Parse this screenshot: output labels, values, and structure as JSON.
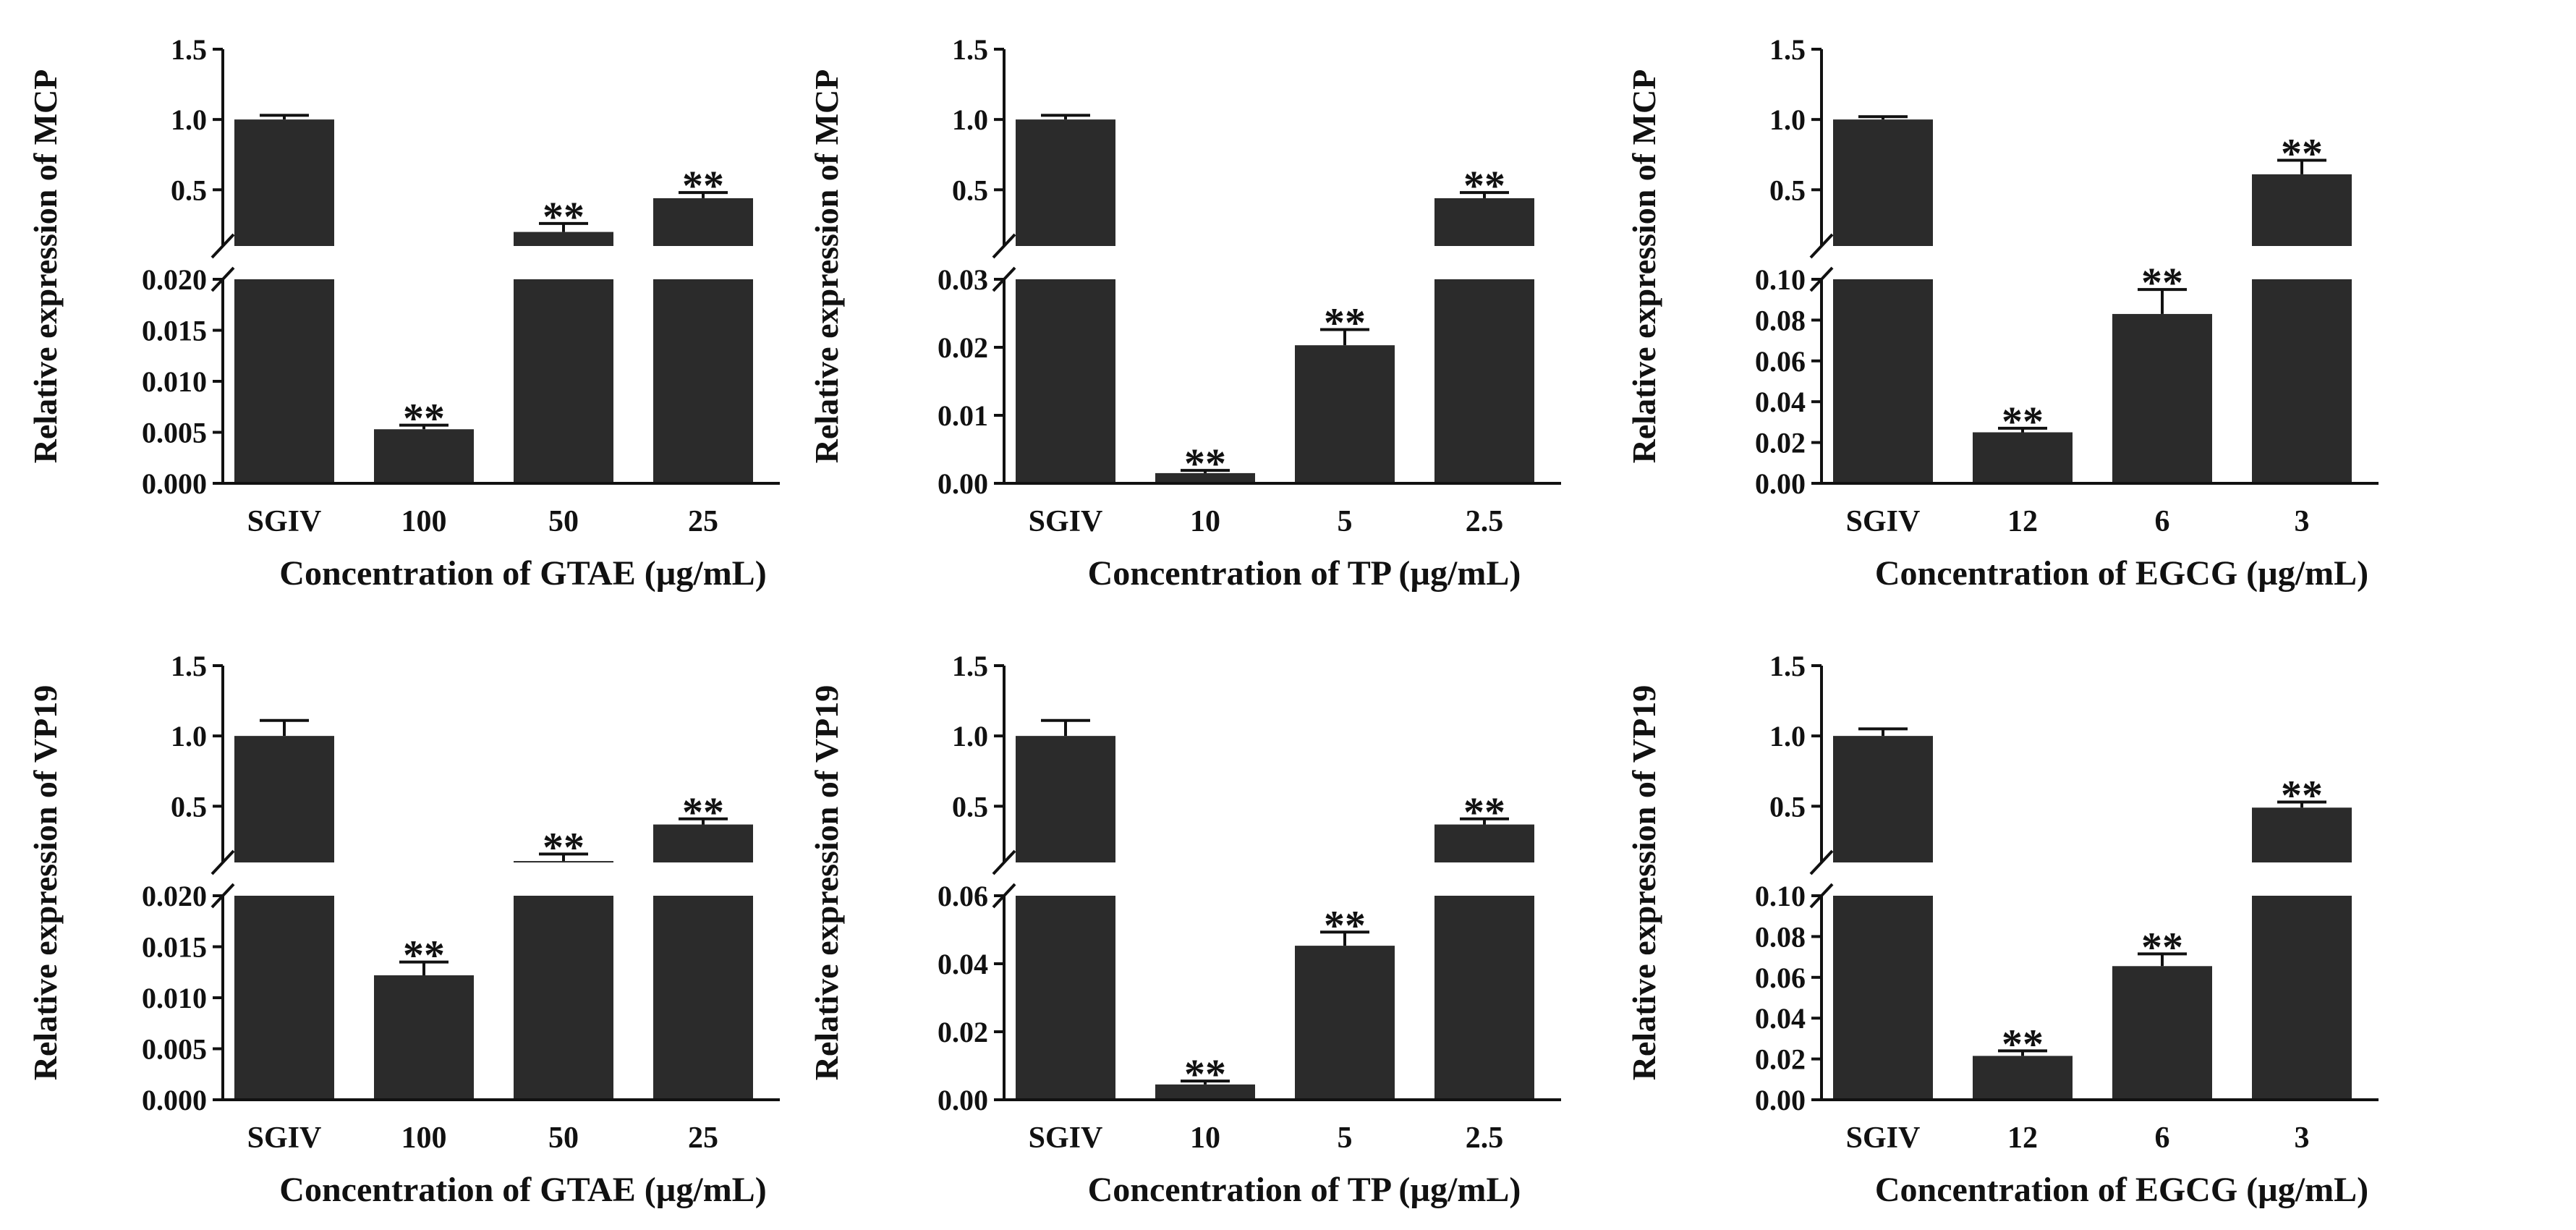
{
  "style": {
    "bar_color": "#2b2b2b",
    "axis_color": "#111111"
  },
  "chart_data": [
    {
      "type": "bar",
      "ylabel": "Relative expression of MCP",
      "xlabel": "Concentration of  GTAE (µg/mL)",
      "categories": [
        "SGIV",
        "100",
        "50",
        "25"
      ],
      "values": [
        1.0,
        0.0053,
        0.2,
        0.44
      ],
      "errors": [
        0.03,
        0.0004,
        0.06,
        0.04
      ],
      "significance": [
        "",
        "**",
        "**",
        "**"
      ],
      "upper": {
        "ylim": [
          0.1,
          1.5
        ],
        "ticks": [
          "0.5",
          "1.0",
          "1.5"
        ]
      },
      "lower": {
        "ylim": [
          0,
          0.02
        ],
        "ticks": [
          "0.000",
          "0.005",
          "0.010",
          "0.015",
          "0.020"
        ]
      }
    },
    {
      "type": "bar",
      "ylabel": "Relative expression of MCP",
      "xlabel": "Concentration of  TP (µg/mL)",
      "categories": [
        "SGIV",
        "10",
        "5",
        "2.5"
      ],
      "values": [
        1.0,
        0.0015,
        0.0203,
        0.44
      ],
      "errors": [
        0.03,
        0.0004,
        0.0023,
        0.04
      ],
      "significance": [
        "",
        "**",
        "**",
        "**"
      ],
      "upper": {
        "ylim": [
          0.1,
          1.5
        ],
        "ticks": [
          "0.5",
          "1.0",
          "1.5"
        ]
      },
      "lower": {
        "ylim": [
          0,
          0.03
        ],
        "ticks": [
          "0.00",
          "0.01",
          "0.02",
          "0.03"
        ]
      }
    },
    {
      "type": "bar",
      "ylabel": "Relative expression of MCP",
      "xlabel": "Concentration of  EGCG (µg/mL)",
      "categories": [
        "SGIV",
        "12",
        "6",
        "3"
      ],
      "values": [
        1.0,
        0.025,
        0.083,
        0.61
      ],
      "errors": [
        0.02,
        0.002,
        0.012,
        0.1
      ],
      "significance": [
        "",
        "**",
        "**",
        "**"
      ],
      "upper": {
        "ylim": [
          0.1,
          1.5
        ],
        "ticks": [
          "0.5",
          "1.0",
          "1.5"
        ]
      },
      "lower": {
        "ylim": [
          0,
          0.1
        ],
        "ticks": [
          "0.00",
          "0.02",
          "0.04",
          "0.06",
          "0.08",
          "0.10"
        ]
      }
    },
    {
      "type": "bar",
      "ylabel": "Relative expression of VP19",
      "xlabel": "Concentration of  GTAE (µg/mL)",
      "categories": [
        "SGIV",
        "100",
        "50",
        "25"
      ],
      "values": [
        1.0,
        0.0122,
        0.11,
        0.37
      ],
      "errors": [
        0.11,
        0.0013,
        0.05,
        0.04
      ],
      "significance": [
        "",
        "**",
        "**",
        "**"
      ],
      "upper": {
        "ylim": [
          0.1,
          1.5
        ],
        "ticks": [
          "0.5",
          "1.0",
          "1.5"
        ]
      },
      "lower": {
        "ylim": [
          0,
          0.02
        ],
        "ticks": [
          "0.000",
          "0.005",
          "0.010",
          "0.015",
          "0.020"
        ]
      }
    },
    {
      "type": "bar",
      "ylabel": "Relative expression of VP19",
      "xlabel": "Concentration of  TP (µg/mL)",
      "categories": [
        "SGIV",
        "10",
        "5",
        "2.5"
      ],
      "values": [
        1.0,
        0.0045,
        0.0453,
        0.37
      ],
      "errors": [
        0.11,
        0.001,
        0.004,
        0.04
      ],
      "significance": [
        "",
        "**",
        "**",
        "**"
      ],
      "upper": {
        "ylim": [
          0.1,
          1.5
        ],
        "ticks": [
          "0.5",
          "1.0",
          "1.5"
        ]
      },
      "lower": {
        "ylim": [
          0,
          0.06
        ],
        "ticks": [
          "0.00",
          "0.02",
          "0.04",
          "0.06"
        ]
      }
    },
    {
      "type": "bar",
      "ylabel": "Relative expression of VP19",
      "xlabel": "Concentration of  EGCG (µg/mL)",
      "categories": [
        "SGIV",
        "12",
        "6",
        "3"
      ],
      "values": [
        1.0,
        0.0215,
        0.0655,
        0.49
      ],
      "errors": [
        0.05,
        0.0025,
        0.006,
        0.04
      ],
      "significance": [
        "",
        "**",
        "**",
        "**"
      ],
      "upper": {
        "ylim": [
          0.1,
          1.5
        ],
        "ticks": [
          "0.5",
          "1.0",
          "1.5"
        ]
      },
      "lower": {
        "ylim": [
          0,
          0.1
        ],
        "ticks": [
          "0.00",
          "0.02",
          "0.04",
          "0.06",
          "0.08",
          "0.10"
        ]
      }
    }
  ]
}
